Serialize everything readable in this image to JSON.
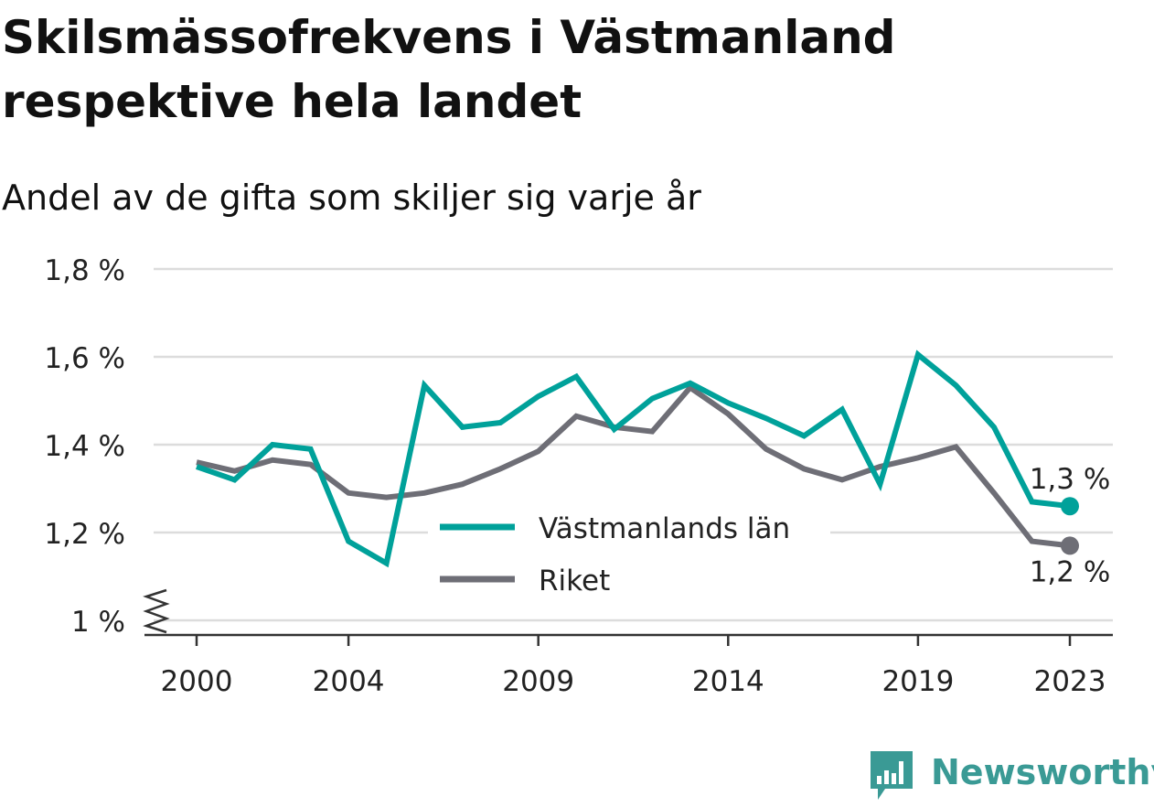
{
  "title": "Skilsmässofrekvens i Västmanland respektive hela landet",
  "subtitle": "Andel av de gifta som skiljer sig varje år",
  "brand": {
    "name": "Newsworthy",
    "color": "#3a9a95",
    "icon": "bar-chart-speech-bubble-icon"
  },
  "colors": {
    "vastmanland": "#00a19a",
    "riket": "#6e6e76",
    "grid": "#dcdcdc",
    "axis": "#333333"
  },
  "chart_data": {
    "type": "line",
    "title": "Skilsmässofrekvens i Västmanland respektive hela landet",
    "subtitle": "Andel av de gifta som skiljer sig varje år",
    "x": [
      2000,
      2001,
      2002,
      2003,
      2004,
      2005,
      2006,
      2007,
      2008,
      2009,
      2010,
      2011,
      2012,
      2013,
      2014,
      2015,
      2016,
      2017,
      2018,
      2019,
      2020,
      2021,
      2022,
      2023
    ],
    "x_ticks": [
      2000,
      2004,
      2009,
      2014,
      2019,
      2023
    ],
    "x_tick_labels": [
      "2000",
      "2004",
      "2009",
      "2014",
      "2019",
      "2023"
    ],
    "y_ticks": [
      1.0,
      1.2,
      1.4,
      1.6,
      1.8
    ],
    "y_tick_labels": [
      "1 %",
      "1,2 %",
      "1,4 %",
      "1,6 %",
      "1,8 %"
    ],
    "ylim": [
      1.0,
      1.8
    ],
    "y_axis_break": true,
    "grid": true,
    "legend_position": "center",
    "series": [
      {
        "name": "Västmanlands län",
        "values": [
          1.35,
          1.32,
          1.4,
          1.39,
          1.18,
          1.13,
          1.535,
          1.44,
          1.45,
          1.51,
          1.555,
          1.435,
          1.505,
          1.54,
          1.495,
          1.46,
          1.42,
          1.48,
          1.31,
          1.605,
          1.535,
          1.44,
          1.27,
          1.26
        ],
        "end_label": "1,3 %"
      },
      {
        "name": "Riket",
        "values": [
          1.36,
          1.34,
          1.365,
          1.355,
          1.29,
          1.28,
          1.29,
          1.31,
          1.345,
          1.385,
          1.465,
          1.44,
          1.43,
          1.53,
          1.47,
          1.39,
          1.345,
          1.32,
          1.35,
          1.37,
          1.395,
          1.29,
          1.18,
          1.17
        ],
        "end_label": "1,2 %"
      }
    ]
  }
}
